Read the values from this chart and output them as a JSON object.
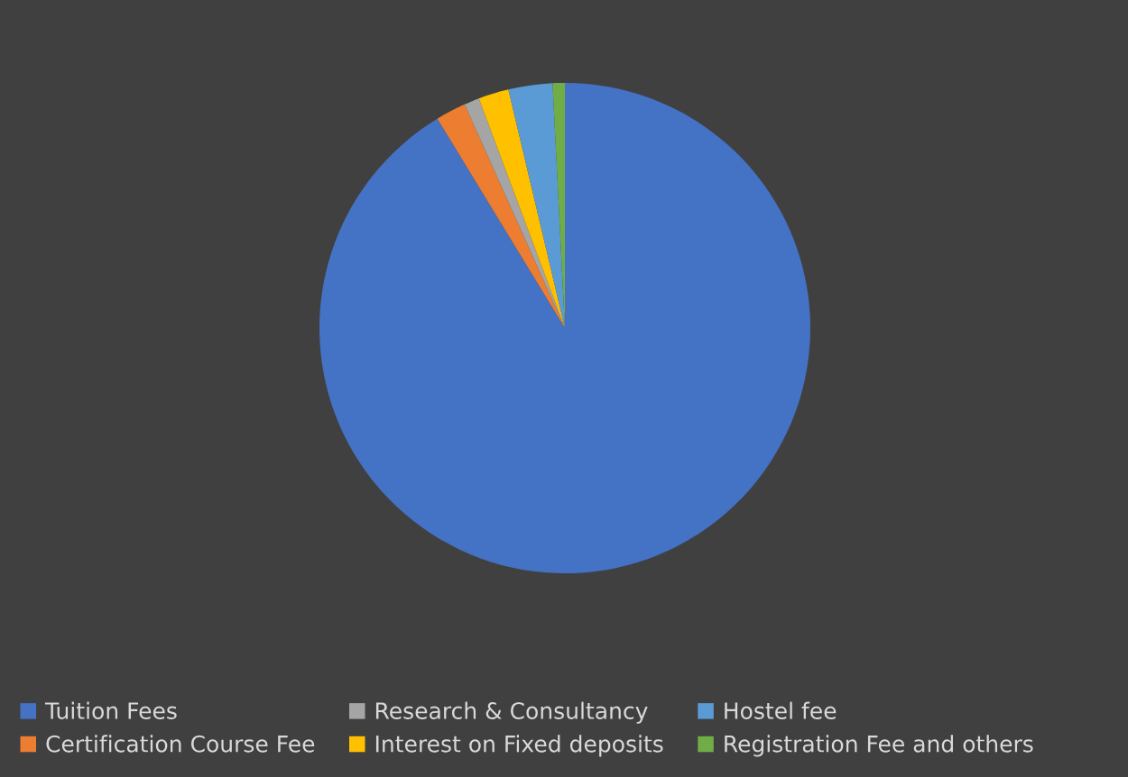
{
  "chart_data": {
    "type": "pie",
    "categories": [
      "Tuition Fees",
      "Certification Course Fee",
      "Research & Consultancy",
      "Interest on Fixed deposits",
      "Hostel fee",
      "Registration Fee and others"
    ],
    "values": [
      91.3,
      2.0,
      1.0,
      2.0,
      2.9,
      0.8
    ],
    "colors": [
      "#4472c4",
      "#ed7d31",
      "#a5a5a5",
      "#ffc000",
      "#5b9bd5",
      "#70ad47"
    ],
    "legend": "bottom"
  }
}
